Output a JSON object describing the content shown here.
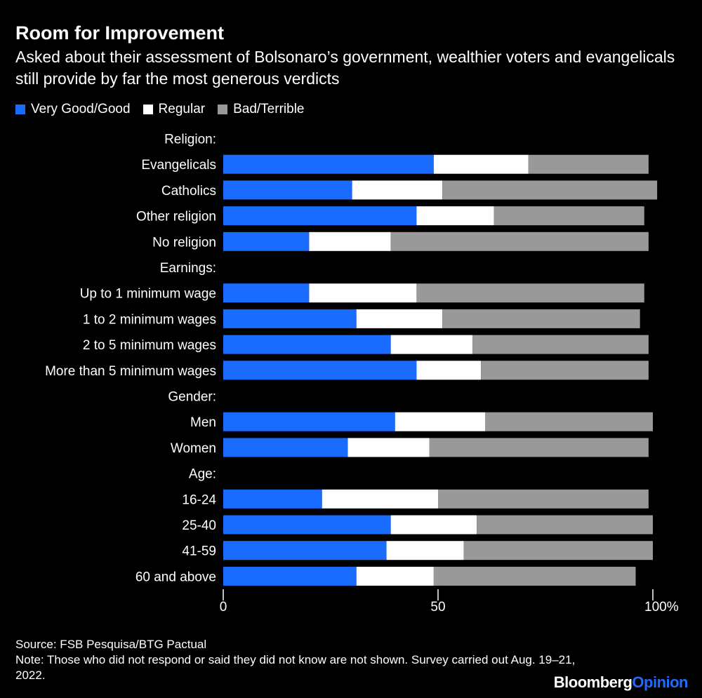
{
  "title": "Room for Improvement",
  "subtitle": "Asked about their assessment of Bolsonaro’s government, wealthier voters and evangelicals still provide by far the most generous verdicts",
  "footer": {
    "source": "Source: FSB Pesquisa/BTG Pactual",
    "note": "Note: Those who did not respond or said they did not know are not shown. Survey carried out Aug. 19–21, 2022."
  },
  "logo": {
    "part1": "Bloomberg",
    "part2": "Opinion"
  },
  "chart_data": {
    "type": "bar",
    "orientation": "horizontal",
    "stacked": true,
    "xlim": [
      0,
      100
    ],
    "x_ticks": [
      "0",
      "50",
      "100%"
    ],
    "x_tick_values": [
      0,
      50,
      100
    ],
    "grid": false,
    "legend_position": "top-left",
    "series": [
      {
        "name": "Very Good/Good",
        "color": "#1a6cff"
      },
      {
        "name": "Regular",
        "color": "#ffffff"
      },
      {
        "name": "Bad/Terrible",
        "color": "#999999"
      }
    ],
    "groups": [
      {
        "label": "Religion:",
        "rows": [
          {
            "label": "Evangelicals",
            "values": [
              49,
              22,
              28
            ]
          },
          {
            "label": "Catholics",
            "values": [
              30,
              21,
              50
            ]
          },
          {
            "label": "Other religion",
            "values": [
              45,
              18,
              35
            ]
          },
          {
            "label": "No religion",
            "values": [
              20,
              19,
              60
            ]
          }
        ]
      },
      {
        "label": "Earnings:",
        "rows": [
          {
            "label": "Up to 1 minimum wage",
            "values": [
              20,
              25,
              53
            ]
          },
          {
            "label": "1 to 2 minimum wages",
            "values": [
              31,
              20,
              46
            ]
          },
          {
            "label": "2 to 5 minimum wages",
            "values": [
              39,
              19,
              41
            ]
          },
          {
            "label": "More than 5 minimum wages",
            "values": [
              45,
              15,
              39
            ]
          }
        ]
      },
      {
        "label": "Gender:",
        "rows": [
          {
            "label": "Men",
            "values": [
              40,
              21,
              39
            ]
          },
          {
            "label": "Women",
            "values": [
              29,
              19,
              51
            ]
          }
        ]
      },
      {
        "label": "Age:",
        "rows": [
          {
            "label": "16-24",
            "values": [
              23,
              27,
              49
            ]
          },
          {
            "label": "25-40",
            "values": [
              39,
              20,
              41
            ]
          },
          {
            "label": "41-59",
            "values": [
              38,
              18,
              44
            ]
          },
          {
            "label": "60 and above",
            "values": [
              31,
              18,
              47
            ]
          }
        ]
      }
    ]
  }
}
